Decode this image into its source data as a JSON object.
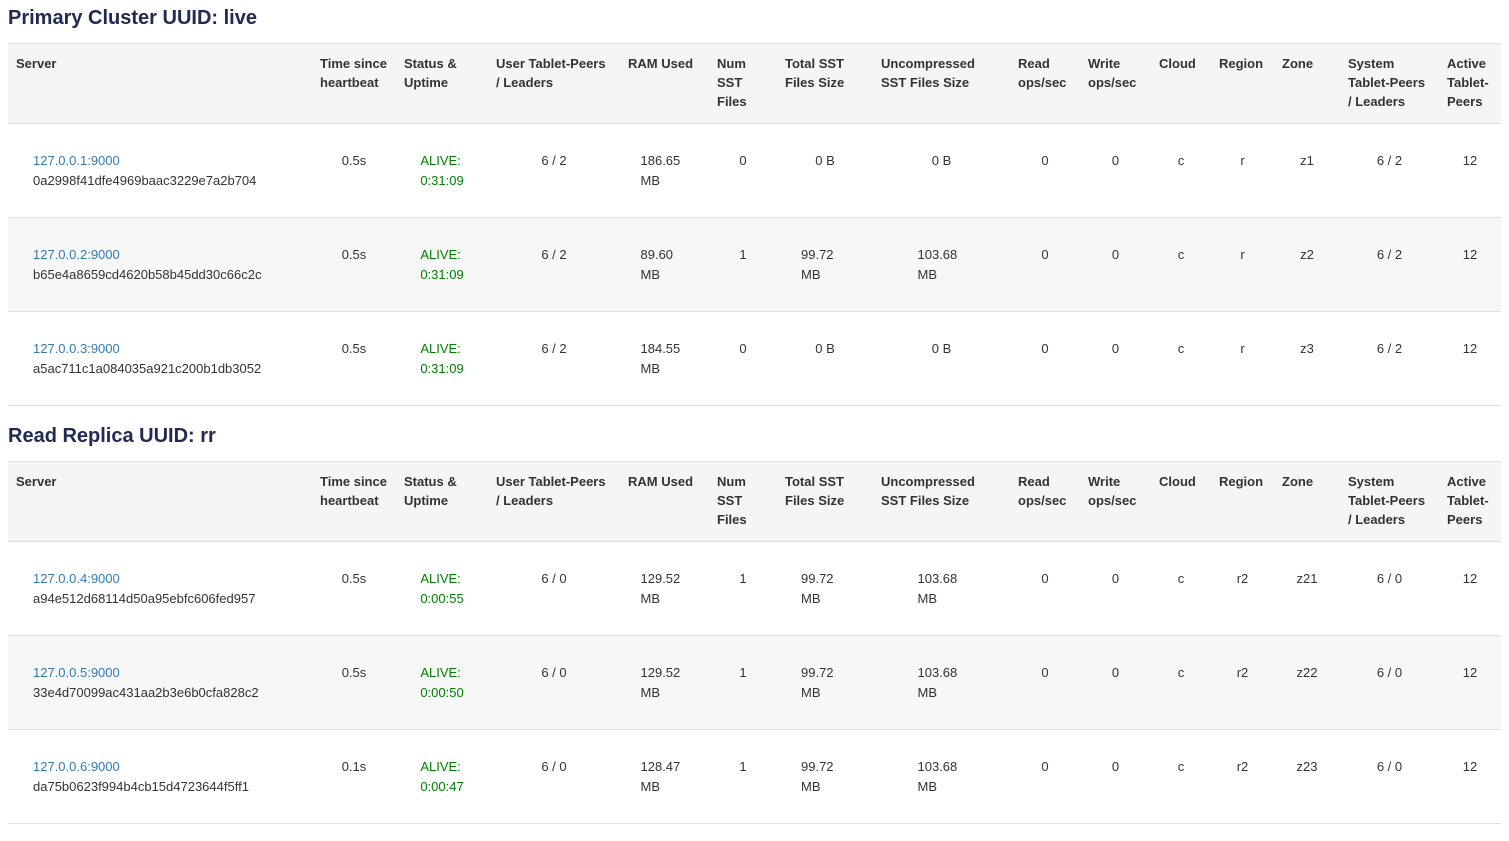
{
  "colors": {
    "title": "#202a52",
    "link": "#337ab7",
    "alive_green": "#008000",
    "header_bg": "#f5f5f5",
    "stripe_bg": "#f7f7f7",
    "border": "#e0e0e0",
    "text": "#333333"
  },
  "sections": [
    {
      "title": "Primary Cluster UUID: live",
      "columns": [
        "Server",
        "Time since heartbeat",
        "Status & Uptime",
        "User Tablet-Peers / Leaders",
        "RAM Used",
        "Num SST Files",
        "Total SST Files Size",
        "Uncompressed SST Files Size",
        "Read ops/sec",
        "Write ops/sec",
        "Cloud",
        "Region",
        "Zone",
        "System Tablet-Peers / Leaders",
        "Active Tablet-Peers"
      ],
      "rows": [
        {
          "server": "127.0.0.1:9000",
          "uuid": "0a2998f41dfe4969baac3229e7a2b704",
          "heartbeat": "0.5s",
          "status": "ALIVE:",
          "uptime": "0:31:09",
          "user_peers": "6 / 2",
          "ram": "186.65 MB",
          "num_sst": "0",
          "total_sst": "0 B",
          "uncompressed_sst": "0 B",
          "read_ops": "0",
          "write_ops": "0",
          "cloud": "c",
          "region": "r",
          "zone": "z1",
          "system_peers": "6 / 2",
          "active_peers": "12"
        },
        {
          "server": "127.0.0.2:9000",
          "uuid": "b65e4a8659cd4620b58b45dd30c66c2c",
          "heartbeat": "0.5s",
          "status": "ALIVE:",
          "uptime": "0:31:09",
          "user_peers": "6 / 2",
          "ram": "89.60 MB",
          "num_sst": "1",
          "total_sst": "99.72 MB",
          "uncompressed_sst": "103.68 MB",
          "read_ops": "0",
          "write_ops": "0",
          "cloud": "c",
          "region": "r",
          "zone": "z2",
          "system_peers": "6 / 2",
          "active_peers": "12"
        },
        {
          "server": "127.0.0.3:9000",
          "uuid": "a5ac711c1a084035a921c200b1db3052",
          "heartbeat": "0.5s",
          "status": "ALIVE:",
          "uptime": "0:31:09",
          "user_peers": "6 / 2",
          "ram": "184.55 MB",
          "num_sst": "0",
          "total_sst": "0 B",
          "uncompressed_sst": "0 B",
          "read_ops": "0",
          "write_ops": "0",
          "cloud": "c",
          "region": "r",
          "zone": "z3",
          "system_peers": "6 / 2",
          "active_peers": "12"
        }
      ]
    },
    {
      "title": "Read Replica UUID: rr",
      "columns": [
        "Server",
        "Time since heartbeat",
        "Status & Uptime",
        "User Tablet-Peers / Leaders",
        "RAM Used",
        "Num SST Files",
        "Total SST Files Size",
        "Uncompressed SST Files Size",
        "Read ops/sec",
        "Write ops/sec",
        "Cloud",
        "Region",
        "Zone",
        "System Tablet-Peers / Leaders",
        "Active Tablet-Peers"
      ],
      "rows": [
        {
          "server": "127.0.0.4:9000",
          "uuid": "a94e512d68114d50a95ebfc606fed957",
          "heartbeat": "0.5s",
          "status": "ALIVE:",
          "uptime": "0:00:55",
          "user_peers": "6 / 0",
          "ram": "129.52 MB",
          "num_sst": "1",
          "total_sst": "99.72 MB",
          "uncompressed_sst": "103.68 MB",
          "read_ops": "0",
          "write_ops": "0",
          "cloud": "c",
          "region": "r2",
          "zone": "z21",
          "system_peers": "6 / 0",
          "active_peers": "12"
        },
        {
          "server": "127.0.0.5:9000",
          "uuid": "33e4d70099ac431aa2b3e6b0cfa828c2",
          "heartbeat": "0.5s",
          "status": "ALIVE:",
          "uptime": "0:00:50",
          "user_peers": "6 / 0",
          "ram": "129.52 MB",
          "num_sst": "1",
          "total_sst": "99.72 MB",
          "uncompressed_sst": "103.68 MB",
          "read_ops": "0",
          "write_ops": "0",
          "cloud": "c",
          "region": "r2",
          "zone": "z22",
          "system_peers": "6 / 0",
          "active_peers": "12"
        },
        {
          "server": "127.0.0.6:9000",
          "uuid": "da75b0623f994b4cb15d4723644f5ff1",
          "heartbeat": "0.1s",
          "status": "ALIVE:",
          "uptime": "0:00:47",
          "user_peers": "6 / 0",
          "ram": "128.47 MB",
          "num_sst": "1",
          "total_sst": "99.72 MB",
          "uncompressed_sst": "103.68 MB",
          "read_ops": "0",
          "write_ops": "0",
          "cloud": "c",
          "region": "r2",
          "zone": "z23",
          "system_peers": "6 / 0",
          "active_peers": "12"
        }
      ]
    }
  ]
}
